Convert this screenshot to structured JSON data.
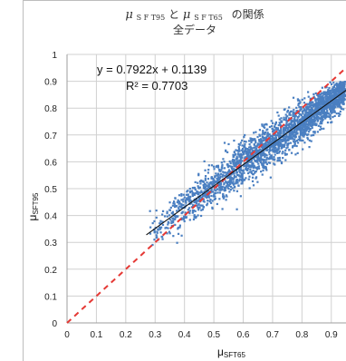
{
  "chart_data": {
    "type": "scatter",
    "title_parts": {
      "mu1": "μ",
      "sub1": "S F T95",
      "mid": "と",
      "mu2": "μ",
      "sub2": "S F T65",
      "end": "の関係"
    },
    "subtitle": "全データ",
    "xlabel_main": "μ",
    "xlabel_sub": "SFT65",
    "ylabel_main": "μ",
    "ylabel_sub": "SFT95",
    "xlim": [
      0,
      0.95
    ],
    "ylim": [
      0,
      1
    ],
    "x_ticks": [
      "0",
      "0.1",
      "0.2",
      "0.3",
      "0.4",
      "0.5",
      "0.6",
      "0.7",
      "0.8",
      "0.9"
    ],
    "y_ticks": [
      "0",
      "0.1",
      "0.2",
      "0.3",
      "0.4",
      "0.5",
      "0.6",
      "0.7",
      "0.8",
      "0.9",
      "1"
    ],
    "grid": true,
    "regression": {
      "slope": 0.7922,
      "intercept": 0.1139
    },
    "equation_text": "y = 0.7922x + 0.1139",
    "r2_text": "R² = 0.7703",
    "reference_line": {
      "slope": 1,
      "intercept": 0,
      "style": "dashed",
      "color": "#e53935"
    },
    "point_color": "#4a7fc1",
    "fit_color": "#111111",
    "x_range": [
      0.27,
      0.95
    ],
    "y_range": [
      0.28,
      0.9
    ]
  }
}
